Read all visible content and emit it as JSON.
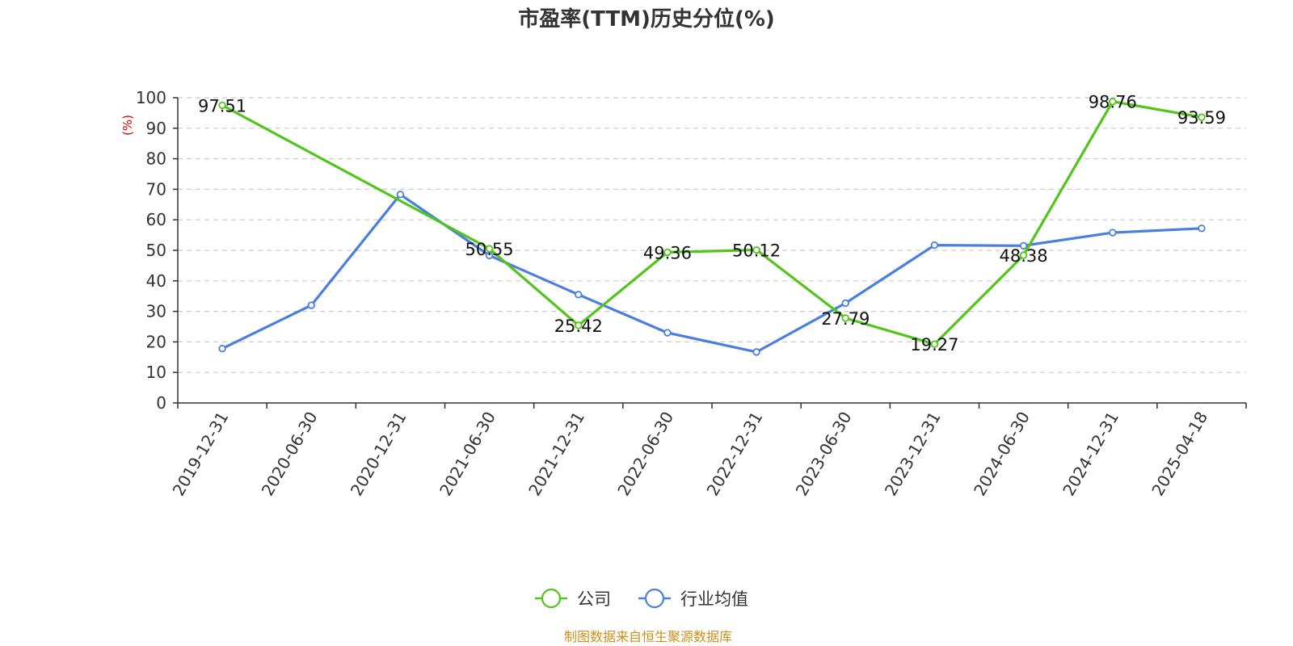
{
  "chart_data": {
    "type": "line",
    "title": "市盈率(TTM)历史分位(%)",
    "ylabel": "(%)",
    "ylim": [
      0,
      100
    ],
    "yticks": [
      0,
      10,
      20,
      30,
      40,
      50,
      60,
      70,
      80,
      90,
      100
    ],
    "grid": true,
    "legend_position": "bottom",
    "categories": [
      "2019-12-31",
      "2020-06-30",
      "2020-12-31",
      "2021-06-30",
      "2021-12-31",
      "2022-06-30",
      "2022-12-31",
      "2023-06-30",
      "2023-12-31",
      "2024-06-30",
      "2024-12-31",
      "2025-04-18"
    ],
    "series": [
      {
        "name": "公司",
        "color": "#52c41a",
        "values": [
          97.51,
          null,
          null,
          50.55,
          25.42,
          49.36,
          50.12,
          27.79,
          19.27,
          48.38,
          98.76,
          93.59
        ],
        "labels": [
          "97.51",
          null,
          null,
          "50.55",
          "25.42",
          "49.36",
          "50.12",
          "27.79",
          "19.27",
          "48.38",
          "98.76",
          "93.59"
        ]
      },
      {
        "name": "行业均值",
        "color": "#4a7fe0",
        "values": [
          17.8,
          32.0,
          68.3,
          48.3,
          35.5,
          23.0,
          16.7,
          32.7,
          51.7,
          51.5,
          55.8,
          57.2
        ]
      }
    ],
    "source": "制图数据来自恒生聚源数据库"
  }
}
